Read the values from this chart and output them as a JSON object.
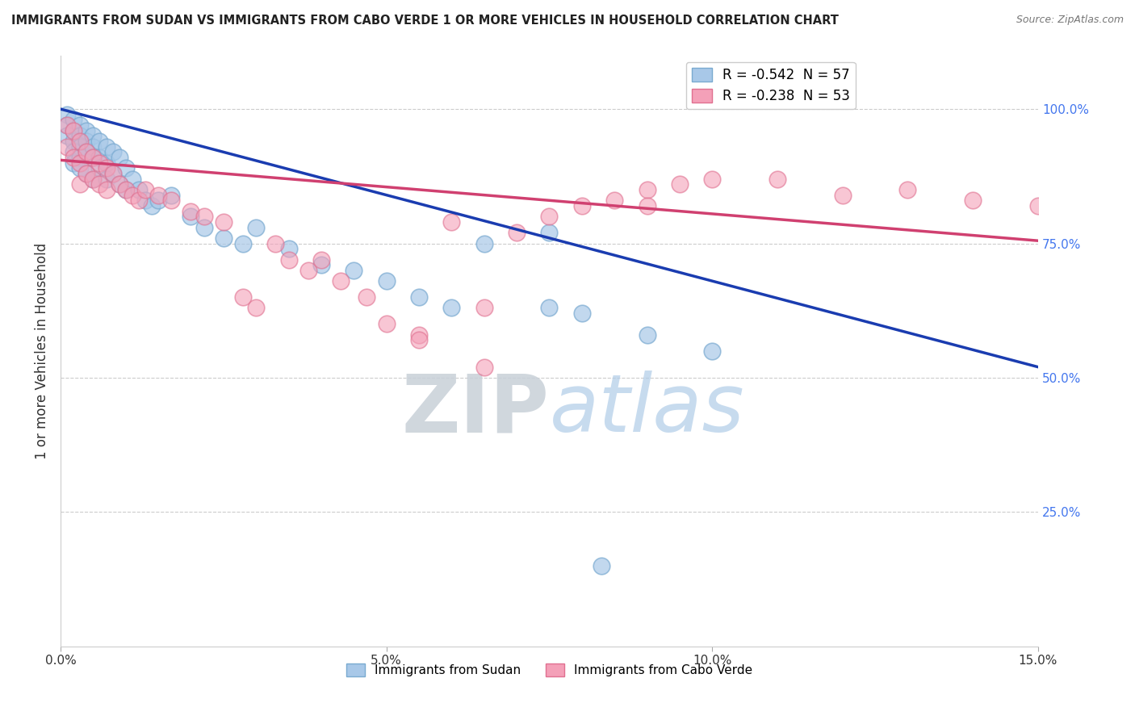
{
  "title": "IMMIGRANTS FROM SUDAN VS IMMIGRANTS FROM CABO VERDE 1 OR MORE VEHICLES IN HOUSEHOLD CORRELATION CHART",
  "source": "Source: ZipAtlas.com",
  "ylabel": "1 or more Vehicles in Household",
  "xlim": [
    0.0,
    0.15
  ],
  "ylim": [
    0.0,
    1.1
  ],
  "xticks": [
    0.0,
    0.05,
    0.1,
    0.15
  ],
  "xticklabels": [
    "0.0%",
    "5.0%",
    "10.0%",
    "15.0%"
  ],
  "yticks_right": [
    0.25,
    0.5,
    0.75,
    1.0
  ],
  "ytick_right_labels": [
    "25.0%",
    "50.0%",
    "75.0%",
    "100.0%"
  ],
  "watermark_zip": "ZIP",
  "watermark_atlas": "atlas",
  "blue_color": "#a8c8e8",
  "blue_edge_color": "#7aaad0",
  "pink_color": "#f4a0b8",
  "pink_edge_color": "#e07090",
  "blue_line_color": "#1a3cb0",
  "pink_line_color": "#d04070",
  "blue_R": -0.542,
  "blue_N": 57,
  "pink_R": -0.238,
  "pink_N": 53,
  "blue_line_y0": 1.0,
  "blue_line_y1": 0.52,
  "pink_line_y0": 0.905,
  "pink_line_y1": 0.755,
  "blue_scatter_x": [
    0.001,
    0.001,
    0.001,
    0.002,
    0.002,
    0.002,
    0.002,
    0.002,
    0.003,
    0.003,
    0.003,
    0.003,
    0.003,
    0.004,
    0.004,
    0.004,
    0.004,
    0.005,
    0.005,
    0.005,
    0.005,
    0.006,
    0.006,
    0.006,
    0.007,
    0.007,
    0.007,
    0.008,
    0.008,
    0.009,
    0.009,
    0.01,
    0.01,
    0.011,
    0.012,
    0.013,
    0.014,
    0.015,
    0.017,
    0.02,
    0.022,
    0.025,
    0.028,
    0.03,
    0.035,
    0.04,
    0.045,
    0.05,
    0.055,
    0.06,
    0.065,
    0.075,
    0.08,
    0.09,
    0.1,
    0.075,
    0.083
  ],
  "blue_scatter_y": [
    0.99,
    0.97,
    0.95,
    0.98,
    0.96,
    0.94,
    0.92,
    0.9,
    0.97,
    0.95,
    0.93,
    0.91,
    0.89,
    0.96,
    0.94,
    0.92,
    0.88,
    0.95,
    0.93,
    0.91,
    0.87,
    0.94,
    0.91,
    0.89,
    0.93,
    0.9,
    0.87,
    0.92,
    0.88,
    0.91,
    0.86,
    0.89,
    0.85,
    0.87,
    0.85,
    0.83,
    0.82,
    0.83,
    0.84,
    0.8,
    0.78,
    0.76,
    0.75,
    0.78,
    0.74,
    0.71,
    0.7,
    0.68,
    0.65,
    0.63,
    0.75,
    0.63,
    0.62,
    0.58,
    0.55,
    0.77,
    0.15
  ],
  "pink_scatter_x": [
    0.001,
    0.001,
    0.002,
    0.002,
    0.003,
    0.003,
    0.003,
    0.004,
    0.004,
    0.005,
    0.005,
    0.006,
    0.006,
    0.007,
    0.007,
    0.008,
    0.009,
    0.01,
    0.011,
    0.012,
    0.013,
    0.015,
    0.017,
    0.02,
    0.022,
    0.025,
    0.028,
    0.03,
    0.033,
    0.035,
    0.038,
    0.04,
    0.043,
    0.047,
    0.05,
    0.055,
    0.06,
    0.065,
    0.07,
    0.075,
    0.08,
    0.085,
    0.09,
    0.095,
    0.1,
    0.11,
    0.12,
    0.13,
    0.14,
    0.15,
    0.055,
    0.065,
    0.09
  ],
  "pink_scatter_y": [
    0.97,
    0.93,
    0.96,
    0.91,
    0.94,
    0.9,
    0.86,
    0.92,
    0.88,
    0.91,
    0.87,
    0.9,
    0.86,
    0.89,
    0.85,
    0.88,
    0.86,
    0.85,
    0.84,
    0.83,
    0.85,
    0.84,
    0.83,
    0.81,
    0.8,
    0.79,
    0.65,
    0.63,
    0.75,
    0.72,
    0.7,
    0.72,
    0.68,
    0.65,
    0.6,
    0.58,
    0.79,
    0.63,
    0.77,
    0.8,
    0.82,
    0.83,
    0.85,
    0.86,
    0.87,
    0.87,
    0.84,
    0.85,
    0.83,
    0.82,
    0.57,
    0.52,
    0.82
  ]
}
